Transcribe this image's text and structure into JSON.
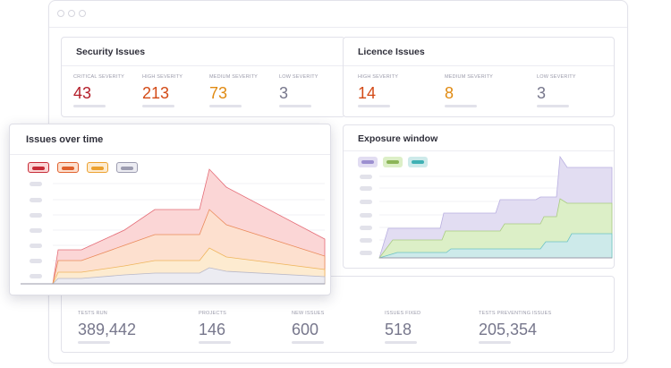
{
  "security": {
    "title": "Security Issues",
    "metrics": [
      {
        "label": "CRITICAL SEVERITY",
        "value": "43",
        "color": "#b41e2a"
      },
      {
        "label": "HIGH SEVERITY",
        "value": "213",
        "color": "#d34a16"
      },
      {
        "label": "MEDIUM SEVERITY",
        "value": "73",
        "color": "#e08a12"
      },
      {
        "label": "LOW SEVERITY",
        "value": "3",
        "color": "#77778c"
      }
    ]
  },
  "licence": {
    "title": "Licence Issues",
    "metrics": [
      {
        "label": "HIGH SEVERITY",
        "value": "14",
        "color": "#d34a16"
      },
      {
        "label": "MEDIUM SEVERITY",
        "value": "8",
        "color": "#e08a12"
      },
      {
        "label": "LOW SEVERITY",
        "value": "3",
        "color": "#77778c"
      }
    ]
  },
  "issues_over_time": {
    "title": "Issues over time",
    "legend": [
      {
        "fill": "#fbd6d6",
        "border": "#c62a36",
        "swatch": "#c62a36"
      },
      {
        "fill": "#fde0cf",
        "border": "#e0602c",
        "swatch": "#e0602c"
      },
      {
        "fill": "#fdebd0",
        "border": "#eca12f",
        "swatch": "#eca12f"
      },
      {
        "fill": "#ececf2",
        "border": "#9c9cb0",
        "swatch": "#9c9cb0"
      }
    ]
  },
  "exposure": {
    "title": "Exposure window",
    "legend": [
      {
        "fill": "#e2ddf2",
        "swatch": "#9c8fd0"
      },
      {
        "fill": "#dcefc7",
        "swatch": "#8cb558"
      },
      {
        "fill": "#cdeaea",
        "swatch": "#3fb1b4"
      }
    ]
  },
  "stats": {
    "metrics": [
      {
        "label": "TESTS RUN",
        "value": "389,442"
      },
      {
        "label": "PROJECTS",
        "value": "146"
      },
      {
        "label": "NEW ISSUES",
        "value": "600"
      },
      {
        "label": "ISSUES FIXED",
        "value": "518"
      },
      {
        "label": "TESTS PREVENTING ISSUES",
        "value": "205,354"
      }
    ],
    "value_color": "#77778c"
  }
}
